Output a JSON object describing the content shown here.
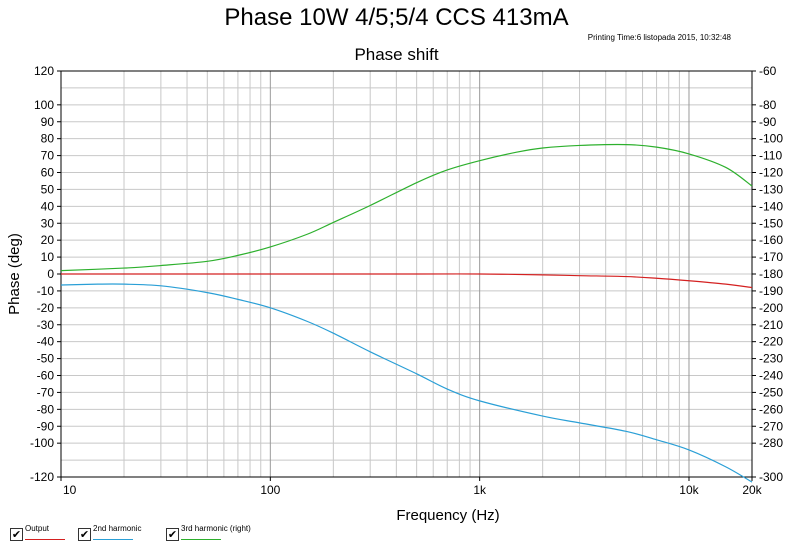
{
  "title": "Phase 10W 4/5;5/4 CCS 413mA",
  "print_time": "Printing Time:6 listopada 2015, 10:32:48",
  "chart_data": {
    "type": "line",
    "title": "Phase shift",
    "xlabel": "Frequency (Hz)",
    "ylabel": "Phase (deg)",
    "x_scale": "log",
    "xlim": [
      10,
      20000
    ],
    "ylim_left": [
      -120,
      120
    ],
    "ylim_right": [
      -300,
      -60
    ],
    "grid": true,
    "x_tick_labels": [
      {
        "value": 10,
        "label": "10"
      },
      {
        "value": 100,
        "label": "100"
      },
      {
        "value": 1000,
        "label": "1k"
      },
      {
        "value": 10000,
        "label": "10k"
      },
      {
        "value": 20000,
        "label": "20k"
      }
    ],
    "left_ticks": [
      120,
      100,
      90,
      80,
      70,
      60,
      50,
      40,
      30,
      20,
      10,
      0,
      -10,
      -20,
      -30,
      -40,
      -50,
      -60,
      -70,
      -80,
      -90,
      -100,
      -120
    ],
    "right_ticks": [
      -60,
      -80,
      -90,
      -100,
      -110,
      -120,
      -130,
      -140,
      -150,
      -160,
      -170,
      -180,
      -190,
      -200,
      -210,
      -220,
      -230,
      -240,
      -250,
      -260,
      -270,
      -280,
      -300
    ],
    "series": [
      {
        "name": "Output",
        "color": "#d42020",
        "axis": "left",
        "x": [
          10,
          20,
          50,
          100,
          200,
          500,
          1000,
          2000,
          3000,
          5000,
          7000,
          10000,
          15000,
          20000
        ],
        "y": [
          0,
          0,
          0,
          0,
          0,
          0,
          0,
          -0.5,
          -1,
          -1.5,
          -2.5,
          -4,
          -6,
          -8
        ]
      },
      {
        "name": "2nd harmonic",
        "color": "#2a9fd6",
        "axis": "left",
        "x": [
          10,
          15,
          20,
          30,
          50,
          70,
          100,
          150,
          200,
          300,
          500,
          700,
          1000,
          2000,
          3000,
          5000,
          7000,
          10000,
          15000,
          20000
        ],
        "y": [
          -6.5,
          -6,
          -6,
          -7,
          -11,
          -15,
          -20,
          -28,
          -35,
          -46,
          -59,
          -68,
          -75,
          -84,
          -88,
          -93,
          -98,
          -104,
          -114,
          -123
        ]
      },
      {
        "name": "3rd harmonic (right)",
        "color": "#2db02d",
        "axis": "right",
        "x": [
          10,
          20,
          30,
          50,
          70,
          100,
          150,
          200,
          300,
          500,
          700,
          1000,
          1500,
          2000,
          3000,
          5000,
          7000,
          10000,
          15000,
          20000
        ],
        "y": [
          -178,
          -176.5,
          -175,
          -172.5,
          -169,
          -164,
          -156.5,
          -149.5,
          -139.5,
          -126,
          -118.5,
          -113,
          -108,
          -105.5,
          -104,
          -103.5,
          -105,
          -109,
          -117,
          -128
        ]
      }
    ],
    "legend": "bottom-left"
  },
  "legend": [
    {
      "label": "Output",
      "color": "#d42020",
      "checked": "✔"
    },
    {
      "label": "2nd harmonic",
      "color": "#2a9fd6",
      "checked": "✔"
    },
    {
      "label": "3rd harmonic (right)",
      "color": "#2db02d",
      "checked": "✔"
    }
  ]
}
